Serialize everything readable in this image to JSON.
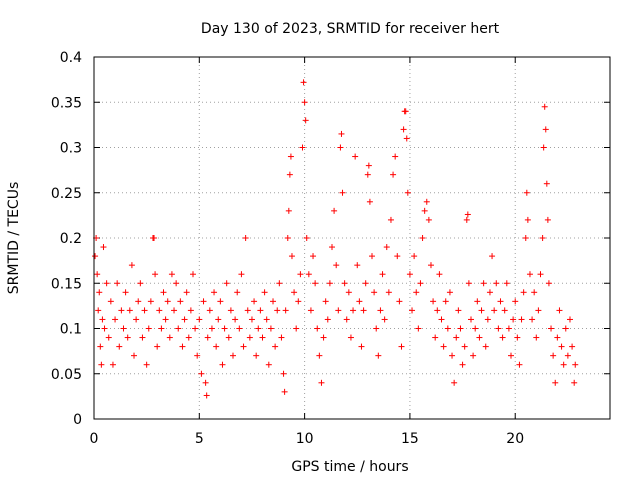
{
  "chart_data": {
    "type": "scatter",
    "title": "Day 130 of 2023, SRMTID for receiver hert",
    "xlabel": "GPS time / hours",
    "ylabel": "SRMTID / TECUs",
    "xlim": [
      0,
      24.5
    ],
    "ylim": [
      0,
      0.4
    ],
    "xticks": [
      0,
      5,
      10,
      15,
      20
    ],
    "xtick_labels": [
      "0",
      "5",
      "10",
      "15",
      "20"
    ],
    "yticks": [
      0,
      0.05,
      0.1,
      0.15,
      0.2,
      0.25,
      0.3,
      0.35,
      0.4
    ],
    "ytick_labels": [
      "0",
      "0.05",
      "0.1",
      "0.15",
      "0.2",
      "0.25",
      "0.3",
      "0.35",
      "0.4"
    ],
    "grid": true,
    "marker": "+",
    "series_color": "#ff0000",
    "series": [
      {
        "name": "SRMTID",
        "points": [
          [
            0.05,
            0.18
          ],
          [
            0.1,
            0.2
          ],
          [
            0.15,
            0.16
          ],
          [
            0.2,
            0.12
          ],
          [
            0.25,
            0.14
          ],
          [
            0.3,
            0.08
          ],
          [
            0.35,
            0.06
          ],
          [
            0.4,
            0.11
          ],
          [
            0.45,
            0.19
          ],
          [
            0.5,
            0.1
          ],
          [
            0.6,
            0.15
          ],
          [
            0.7,
            0.09
          ],
          [
            0.8,
            0.13
          ],
          [
            0.9,
            0.06
          ],
          [
            1.0,
            0.11
          ],
          [
            1.1,
            0.15
          ],
          [
            1.2,
            0.08
          ],
          [
            1.3,
            0.12
          ],
          [
            1.4,
            0.1
          ],
          [
            1.5,
            0.14
          ],
          [
            1.6,
            0.09
          ],
          [
            1.7,
            0.12
          ],
          [
            1.8,
            0.17
          ],
          [
            1.9,
            0.07
          ],
          [
            2.0,
            0.11
          ],
          [
            2.1,
            0.13
          ],
          [
            2.2,
            0.15
          ],
          [
            2.3,
            0.09
          ],
          [
            2.4,
            0.12
          ],
          [
            2.5,
            0.06
          ],
          [
            2.6,
            0.1
          ],
          [
            2.7,
            0.13
          ],
          [
            2.8,
            0.2
          ],
          [
            2.85,
            0.2
          ],
          [
            2.9,
            0.16
          ],
          [
            3.0,
            0.08
          ],
          [
            3.1,
            0.12
          ],
          [
            3.2,
            0.1
          ],
          [
            3.3,
            0.14
          ],
          [
            3.4,
            0.11
          ],
          [
            3.5,
            0.13
          ],
          [
            3.6,
            0.09
          ],
          [
            3.7,
            0.16
          ],
          [
            3.8,
            0.12
          ],
          [
            3.9,
            0.15
          ],
          [
            4.0,
            0.1
          ],
          [
            4.1,
            0.13
          ],
          [
            4.2,
            0.08
          ],
          [
            4.3,
            0.11
          ],
          [
            4.4,
            0.14
          ],
          [
            4.5,
            0.09
          ],
          [
            4.6,
            0.12
          ],
          [
            4.7,
            0.16
          ],
          [
            4.8,
            0.1
          ],
          [
            4.9,
            0.07
          ],
          [
            5.0,
            0.11
          ],
          [
            5.1,
            0.05
          ],
          [
            5.2,
            0.13
          ],
          [
            5.3,
            0.04
          ],
          [
            5.35,
            0.026
          ],
          [
            5.4,
            0.09
          ],
          [
            5.5,
            0.12
          ],
          [
            5.6,
            0.1
          ],
          [
            5.7,
            0.14
          ],
          [
            5.8,
            0.08
          ],
          [
            5.9,
            0.11
          ],
          [
            6.0,
            0.13
          ],
          [
            6.1,
            0.06
          ],
          [
            6.2,
            0.1
          ],
          [
            6.3,
            0.15
          ],
          [
            6.4,
            0.09
          ],
          [
            6.5,
            0.12
          ],
          [
            6.6,
            0.07
          ],
          [
            6.7,
            0.11
          ],
          [
            6.8,
            0.14
          ],
          [
            6.9,
            0.1
          ],
          [
            7.0,
            0.16
          ],
          [
            7.1,
            0.08
          ],
          [
            7.2,
            0.2
          ],
          [
            7.3,
            0.12
          ],
          [
            7.4,
            0.09
          ],
          [
            7.5,
            0.11
          ],
          [
            7.6,
            0.13
          ],
          [
            7.7,
            0.07
          ],
          [
            7.8,
            0.1
          ],
          [
            7.9,
            0.12
          ],
          [
            8.0,
            0.09
          ],
          [
            8.1,
            0.14
          ],
          [
            8.2,
            0.11
          ],
          [
            8.3,
            0.06
          ],
          [
            8.4,
            0.1
          ],
          [
            8.5,
            0.13
          ],
          [
            8.6,
            0.08
          ],
          [
            8.7,
            0.12
          ],
          [
            8.8,
            0.15
          ],
          [
            8.9,
            0.09
          ],
          [
            9.0,
            0.05
          ],
          [
            9.05,
            0.03
          ],
          [
            9.1,
            0.12
          ],
          [
            9.2,
            0.2
          ],
          [
            9.25,
            0.23
          ],
          [
            9.3,
            0.27
          ],
          [
            9.35,
            0.29
          ],
          [
            9.4,
            0.18
          ],
          [
            9.5,
            0.14
          ],
          [
            9.6,
            0.1
          ],
          [
            9.7,
            0.13
          ],
          [
            9.8,
            0.16
          ],
          [
            9.9,
            0.3
          ],
          [
            9.95,
            0.372
          ],
          [
            10.0,
            0.35
          ],
          [
            10.05,
            0.33
          ],
          [
            10.1,
            0.2
          ],
          [
            10.2,
            0.16
          ],
          [
            10.3,
            0.12
          ],
          [
            10.4,
            0.18
          ],
          [
            10.5,
            0.15
          ],
          [
            10.6,
            0.1
          ],
          [
            10.7,
            0.07
          ],
          [
            10.8,
            0.04
          ],
          [
            10.9,
            0.09
          ],
          [
            11.0,
            0.13
          ],
          [
            11.1,
            0.11
          ],
          [
            11.2,
            0.15
          ],
          [
            11.3,
            0.19
          ],
          [
            11.4,
            0.23
          ],
          [
            11.5,
            0.17
          ],
          [
            11.6,
            0.12
          ],
          [
            11.7,
            0.3
          ],
          [
            11.75,
            0.315
          ],
          [
            11.8,
            0.25
          ],
          [
            11.9,
            0.15
          ],
          [
            12.0,
            0.11
          ],
          [
            12.1,
            0.14
          ],
          [
            12.2,
            0.09
          ],
          [
            12.3,
            0.12
          ],
          [
            12.4,
            0.29
          ],
          [
            12.5,
            0.17
          ],
          [
            12.6,
            0.13
          ],
          [
            12.7,
            0.08
          ],
          [
            12.8,
            0.12
          ],
          [
            12.9,
            0.15
          ],
          [
            13.0,
            0.27
          ],
          [
            13.05,
            0.28
          ],
          [
            13.1,
            0.24
          ],
          [
            13.2,
            0.18
          ],
          [
            13.3,
            0.14
          ],
          [
            13.4,
            0.1
          ],
          [
            13.5,
            0.07
          ],
          [
            13.6,
            0.12
          ],
          [
            13.7,
            0.16
          ],
          [
            13.8,
            0.11
          ],
          [
            13.9,
            0.19
          ],
          [
            14.0,
            0.14
          ],
          [
            14.1,
            0.22
          ],
          [
            14.2,
            0.27
          ],
          [
            14.3,
            0.29
          ],
          [
            14.4,
            0.18
          ],
          [
            14.5,
            0.13
          ],
          [
            14.6,
            0.08
          ],
          [
            14.7,
            0.32
          ],
          [
            14.75,
            0.34
          ],
          [
            14.8,
            0.34
          ],
          [
            14.85,
            0.31
          ],
          [
            14.9,
            0.25
          ],
          [
            15.0,
            0.16
          ],
          [
            15.1,
            0.12
          ],
          [
            15.2,
            0.18
          ],
          [
            15.3,
            0.14
          ],
          [
            15.4,
            0.1
          ],
          [
            15.5,
            0.15
          ],
          [
            15.6,
            0.2
          ],
          [
            15.7,
            0.23
          ],
          [
            15.8,
            0.24
          ],
          [
            15.9,
            0.22
          ],
          [
            16.0,
            0.17
          ],
          [
            16.1,
            0.13
          ],
          [
            16.2,
            0.09
          ],
          [
            16.3,
            0.12
          ],
          [
            16.4,
            0.16
          ],
          [
            16.5,
            0.11
          ],
          [
            16.6,
            0.08
          ],
          [
            16.7,
            0.13
          ],
          [
            16.8,
            0.1
          ],
          [
            16.9,
            0.14
          ],
          [
            17.0,
            0.07
          ],
          [
            17.1,
            0.04
          ],
          [
            17.2,
            0.09
          ],
          [
            17.3,
            0.12
          ],
          [
            17.4,
            0.1
          ],
          [
            17.5,
            0.06
          ],
          [
            17.6,
            0.08
          ],
          [
            17.7,
            0.22
          ],
          [
            17.75,
            0.226
          ],
          [
            17.8,
            0.15
          ],
          [
            17.9,
            0.11
          ],
          [
            18.0,
            0.07
          ],
          [
            18.1,
            0.1
          ],
          [
            18.2,
            0.13
          ],
          [
            18.3,
            0.09
          ],
          [
            18.4,
            0.12
          ],
          [
            18.5,
            0.15
          ],
          [
            18.6,
            0.08
          ],
          [
            18.7,
            0.11
          ],
          [
            18.8,
            0.14
          ],
          [
            18.9,
            0.18
          ],
          [
            19.0,
            0.12
          ],
          [
            19.1,
            0.15
          ],
          [
            19.2,
            0.1
          ],
          [
            19.3,
            0.13
          ],
          [
            19.4,
            0.09
          ],
          [
            19.5,
            0.12
          ],
          [
            19.6,
            0.15
          ],
          [
            19.7,
            0.1
          ],
          [
            19.8,
            0.07
          ],
          [
            19.9,
            0.11
          ],
          [
            20.0,
            0.13
          ],
          [
            20.1,
            0.09
          ],
          [
            20.2,
            0.06
          ],
          [
            20.3,
            0.11
          ],
          [
            20.4,
            0.14
          ],
          [
            20.5,
            0.2
          ],
          [
            20.55,
            0.25
          ],
          [
            20.6,
            0.22
          ],
          [
            20.7,
            0.16
          ],
          [
            20.8,
            0.11
          ],
          [
            20.9,
            0.14
          ],
          [
            21.0,
            0.09
          ],
          [
            21.1,
            0.12
          ],
          [
            21.2,
            0.16
          ],
          [
            21.3,
            0.2
          ],
          [
            21.35,
            0.3
          ],
          [
            21.4,
            0.345
          ],
          [
            21.45,
            0.32
          ],
          [
            21.5,
            0.26
          ],
          [
            21.55,
            0.22
          ],
          [
            21.6,
            0.15
          ],
          [
            21.7,
            0.1
          ],
          [
            21.8,
            0.07
          ],
          [
            21.9,
            0.04
          ],
          [
            22.0,
            0.09
          ],
          [
            22.1,
            0.12
          ],
          [
            22.2,
            0.08
          ],
          [
            22.3,
            0.06
          ],
          [
            22.4,
            0.1
          ],
          [
            22.5,
            0.07
          ],
          [
            22.6,
            0.11
          ],
          [
            22.7,
            0.08
          ],
          [
            22.8,
            0.04
          ],
          [
            22.85,
            0.06
          ]
        ]
      }
    ]
  }
}
